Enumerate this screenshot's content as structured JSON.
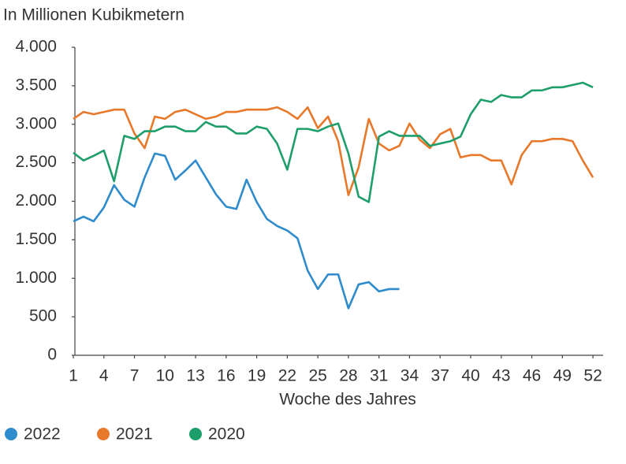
{
  "chart_data": {
    "type": "line",
    "y_label": "In Millionen Kubikmetern",
    "x_label": "Woche des Jahres",
    "x": [
      1,
      2,
      3,
      4,
      5,
      6,
      7,
      8,
      9,
      10,
      11,
      12,
      13,
      14,
      15,
      16,
      17,
      18,
      19,
      20,
      21,
      22,
      23,
      24,
      25,
      26,
      27,
      28,
      29,
      30,
      31,
      32,
      33,
      34,
      35,
      36,
      37,
      38,
      39,
      40,
      41,
      42,
      43,
      44,
      45,
      46,
      47,
      48,
      49,
      50,
      51,
      52
    ],
    "series": [
      {
        "name": "2022",
        "color": "#2e8bcc",
        "values": [
          1740,
          1800,
          1740,
          1920,
          2210,
          2020,
          1930,
          2310,
          2620,
          2590,
          2280,
          2400,
          2530,
          2310,
          2090,
          1930,
          1900,
          2280,
          1990,
          1770,
          1680,
          1620,
          1520,
          1100,
          860,
          1050,
          1050,
          610,
          920,
          950,
          830,
          860,
          860,
          null,
          null,
          null,
          null,
          null,
          null,
          null,
          null,
          null,
          null,
          null,
          null,
          null,
          null,
          null,
          null,
          null,
          null,
          null
        ]
      },
      {
        "name": "2021",
        "color": "#e8782a",
        "values": [
          3070,
          3160,
          3130,
          3160,
          3190,
          3190,
          2880,
          2690,
          3100,
          3070,
          3160,
          3190,
          3130,
          3070,
          3100,
          3160,
          3160,
          3190,
          3190,
          3190,
          3220,
          3160,
          3070,
          3220,
          2950,
          3100,
          2780,
          2080,
          2440,
          3070,
          2750,
          2660,
          2720,
          3010,
          2800,
          2690,
          2870,
          2940,
          2570,
          2600,
          2600,
          2530,
          2530,
          2220,
          2600,
          2780,
          2780,
          2810,
          2810,
          2780,
          2530,
          2310
        ]
      },
      {
        "name": "2020",
        "color": "#1e9e6a",
        "values": [
          2630,
          2530,
          2590,
          2660,
          2260,
          2850,
          2810,
          2910,
          2910,
          2970,
          2970,
          2910,
          2910,
          3030,
          2970,
          2970,
          2880,
          2880,
          2970,
          2940,
          2750,
          2410,
          2940,
          2940,
          2910,
          2970,
          3010,
          2620,
          2060,
          1990,
          2840,
          2910,
          2850,
          2850,
          2850,
          2720,
          2750,
          2780,
          2840,
          3130,
          3320,
          3290,
          3380,
          3350,
          3350,
          3440,
          3440,
          3480,
          3480,
          3510,
          3540,
          3480
        ]
      }
    ],
    "xlim": [
      1,
      53
    ],
    "xticks": [
      1,
      4,
      7,
      10,
      13,
      16,
      19,
      22,
      25,
      28,
      31,
      34,
      37,
      40,
      43,
      46,
      49,
      52
    ],
    "ylim": [
      0,
      4000
    ],
    "yticks": [
      0,
      500,
      {
        "value": 1000,
        "label": "1.000"
      },
      {
        "value": 1500,
        "label": "1.500"
      },
      {
        "value": 2000,
        "label": "2.000"
      },
      {
        "value": 2500,
        "label": "2.500"
      },
      {
        "value": 3000,
        "label": "3.000"
      },
      {
        "value": 3500,
        "label": "3.500"
      },
      {
        "value": 4000,
        "label": "4.000"
      }
    ],
    "grid": false
  }
}
